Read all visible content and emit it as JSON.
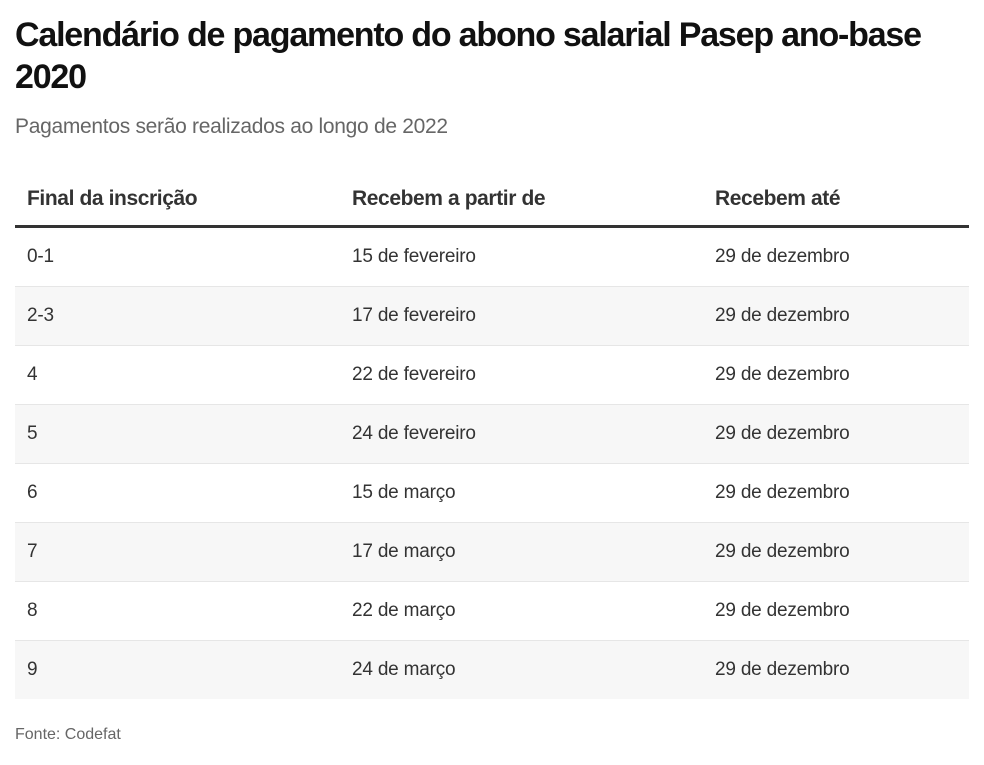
{
  "title": "Calendário de pagamento do abono salarial Pasep ano-base 2020",
  "subtitle": "Pagamentos serão realizados ao longo de 2022",
  "source": "Fonte: Codefat",
  "table": {
    "headers": [
      "Final da inscrição",
      "Recebem a partir de",
      "Recebem até"
    ],
    "rows": [
      [
        "0-1",
        "15 de fevereiro",
        "29 de dezembro"
      ],
      [
        "2-3",
        "17 de fevereiro",
        "29 de dezembro"
      ],
      [
        "4",
        "22 de fevereiro",
        "29 de dezembro"
      ],
      [
        "5",
        "24 de fevereiro",
        "29 de dezembro"
      ],
      [
        "6",
        "15 de março",
        "29 de dezembro"
      ],
      [
        "7",
        "17 de março",
        "29 de dezembro"
      ],
      [
        "8",
        "22 de março",
        "29 de dezembro"
      ],
      [
        "9",
        "24 de março",
        "29 de dezembro"
      ]
    ]
  },
  "colors": {
    "title": "#111111",
    "text": "#333333",
    "muted": "#666666",
    "alt_row": "#f7f7f7",
    "header_rule": "#333333"
  },
  "chart_data": {
    "type": "table",
    "title": "Calendário de pagamento do abono salarial Pasep ano-base 2020",
    "subtitle": "Pagamentos serão realizados ao longo de 2022",
    "columns": [
      "Final da inscrição",
      "Recebem a partir de",
      "Recebem até"
    ],
    "rows": [
      [
        "0-1",
        "15 de fevereiro",
        "29 de dezembro"
      ],
      [
        "2-3",
        "17 de fevereiro",
        "29 de dezembro"
      ],
      [
        "4",
        "22 de fevereiro",
        "29 de dezembro"
      ],
      [
        "5",
        "24 de fevereiro",
        "29 de dezembro"
      ],
      [
        "6",
        "15 de março",
        "29 de dezembro"
      ],
      [
        "7",
        "17 de março",
        "29 de dezembro"
      ],
      [
        "8",
        "22 de março",
        "29 de dezembro"
      ],
      [
        "9",
        "24 de março",
        "29 de dezembro"
      ]
    ],
    "source": "Fonte: Codefat"
  }
}
